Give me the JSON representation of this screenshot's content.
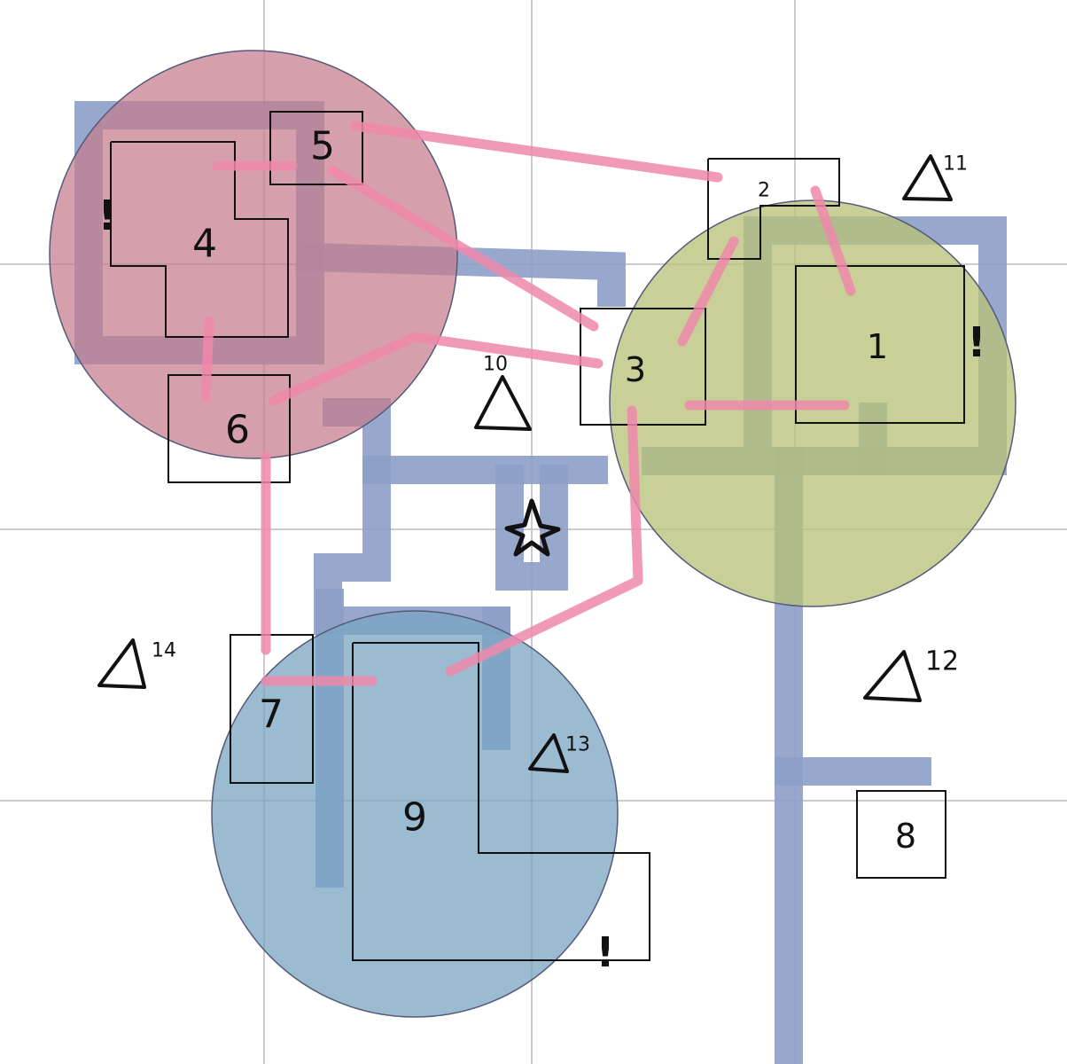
{
  "colors": {
    "background": "#ffffff",
    "grid": "#bcbcbc",
    "corridor": "#8d9fc8",
    "link": "#ee88aa",
    "zone_red": "#c57b8c",
    "zone_olive": "#bcc57a",
    "zone_blue": "#7fa8c4"
  },
  "rooms": [
    {
      "label": "1"
    },
    {
      "label": "2"
    },
    {
      "label": "3"
    },
    {
      "label": "4"
    },
    {
      "label": "5"
    },
    {
      "label": "6"
    },
    {
      "label": "7"
    },
    {
      "label": "8"
    },
    {
      "label": "9"
    }
  ],
  "markers": [
    {
      "label": "10"
    },
    {
      "label": "11"
    },
    {
      "label": "12"
    },
    {
      "label": "13"
    },
    {
      "label": "14"
    }
  ],
  "alerts": [
    {
      "symbol": "!"
    },
    {
      "symbol": "!"
    },
    {
      "symbol": "!"
    }
  ],
  "star": {
    "icon": "star-icon"
  }
}
